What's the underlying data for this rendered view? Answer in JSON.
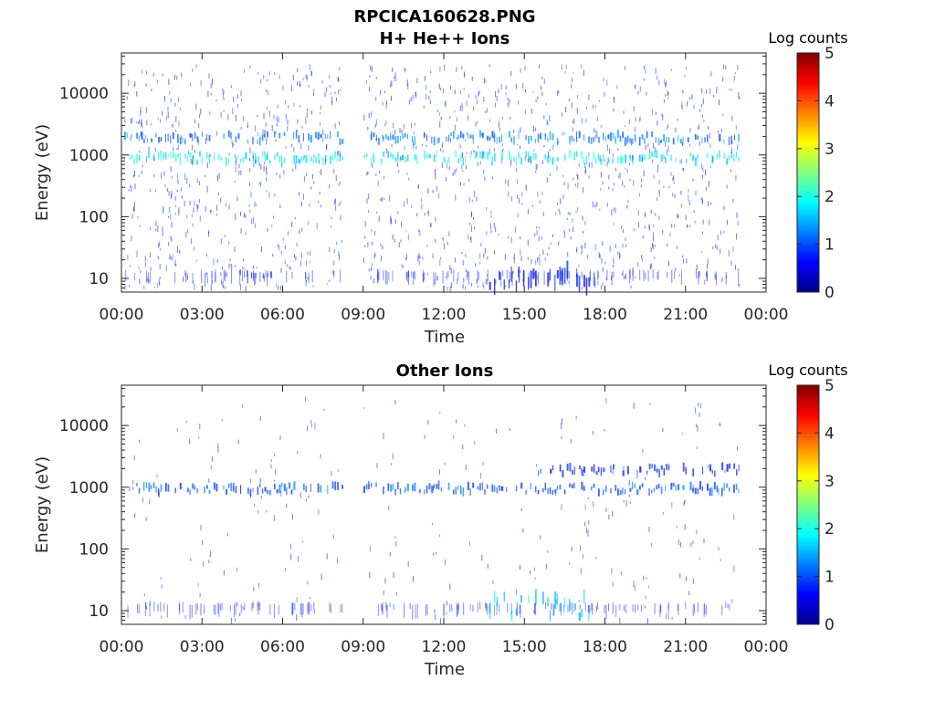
{
  "figure": {
    "filename": "RPCICA160628.PNG"
  },
  "chart_data": [
    {
      "type": "heatmap",
      "title": "H+ He++ Ions",
      "xlabel": "Time",
      "ylabel": "Energy (eV)",
      "x_ticks": [
        "00:00",
        "03:00",
        "06:00",
        "09:00",
        "12:00",
        "15:00",
        "18:00",
        "21:00",
        "00:00"
      ],
      "x_range_hours": [
        0,
        24
      ],
      "y_scale": "log",
      "y_range": [
        6,
        45000
      ],
      "y_ticks": [
        10,
        100,
        1000,
        10000
      ],
      "y_tick_labels": [
        "10",
        "100",
        "1000",
        "10000"
      ],
      "colorbar": {
        "label": "Log counts",
        "range": [
          0,
          5
        ],
        "ticks": [
          "0",
          "1",
          "2",
          "3",
          "4",
          "5"
        ],
        "colormap": "jet"
      },
      "data_gap_hours": [
        8.2,
        9.0
      ],
      "data_end_hours": 23.0,
      "bands": [
        {
          "energy_eV": 900,
          "log_counts": 1.9,
          "hours": [
            0.1,
            23.0
          ]
        },
        {
          "energy_eV": 1900,
          "log_counts": 1.2,
          "hours": [
            0.1,
            23.0
          ]
        },
        {
          "energy_eV": 10,
          "log_counts": 0.6,
          "hours": [
            13.6,
            17.5
          ]
        }
      ]
    },
    {
      "type": "heatmap",
      "title": "Other Ions",
      "xlabel": "Time",
      "ylabel": "Energy (eV)",
      "x_ticks": [
        "00:00",
        "03:00",
        "06:00",
        "09:00",
        "12:00",
        "15:00",
        "18:00",
        "21:00",
        "00:00"
      ],
      "x_range_hours": [
        0,
        24
      ],
      "y_scale": "log",
      "y_range": [
        6,
        45000
      ],
      "y_ticks": [
        10,
        100,
        1000,
        10000
      ],
      "y_tick_labels": [
        "10",
        "100",
        "1000",
        "10000"
      ],
      "colorbar": {
        "label": "Log counts",
        "range": [
          0,
          5
        ],
        "ticks": [
          "0",
          "1",
          "2",
          "3",
          "4",
          "5"
        ],
        "colormap": "jet"
      },
      "data_gap_hours": [
        8.2,
        9.0
      ],
      "data_end_hours": 23.0,
      "bands": [
        {
          "energy_eV": 950,
          "log_counts": 1.0,
          "hours": [
            0.1,
            23.0
          ]
        },
        {
          "energy_eV": 1900,
          "log_counts": 0.7,
          "hours": [
            15.5,
            23.0
          ]
        },
        {
          "energy_eV": 12,
          "log_counts": 1.8,
          "hours": [
            13.6,
            17.5
          ]
        }
      ]
    }
  ]
}
